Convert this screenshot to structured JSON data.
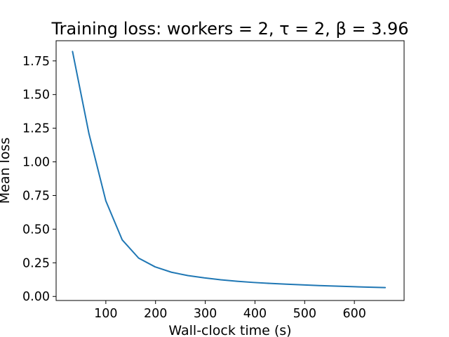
{
  "chart_data": {
    "type": "line",
    "title": "Training loss: workers = 2, τ = 2, β = 3.96",
    "xlabel": "Wall-clock time (s)",
    "ylabel": "Mean loss",
    "xlim": [
      0,
      700
    ],
    "ylim": [
      -0.03,
      1.9
    ],
    "xticks": [
      100,
      200,
      300,
      400,
      500,
      600
    ],
    "xtick_labels": [
      "100",
      "200",
      "300",
      "400",
      "500",
      "600"
    ],
    "yticks": [
      0.0,
      0.25,
      0.5,
      0.75,
      1.0,
      1.25,
      1.5,
      1.75
    ],
    "ytick_labels": [
      "0.00",
      "0.25",
      "0.50",
      "0.75",
      "1.00",
      "1.25",
      "1.50",
      "1.75"
    ],
    "grid": false,
    "series": [
      {
        "color": "#1f77b4",
        "x": [
          33,
          66,
          100,
          133,
          166,
          199,
          232,
          265,
          298,
          331,
          364,
          397,
          430,
          463,
          496,
          529,
          562,
          595,
          628,
          662
        ],
        "y": [
          1.82,
          1.21,
          0.71,
          0.42,
          0.285,
          0.22,
          0.18,
          0.155,
          0.138,
          0.124,
          0.113,
          0.104,
          0.097,
          0.091,
          0.086,
          0.081,
          0.077,
          0.073,
          0.069,
          0.066
        ]
      }
    ]
  }
}
